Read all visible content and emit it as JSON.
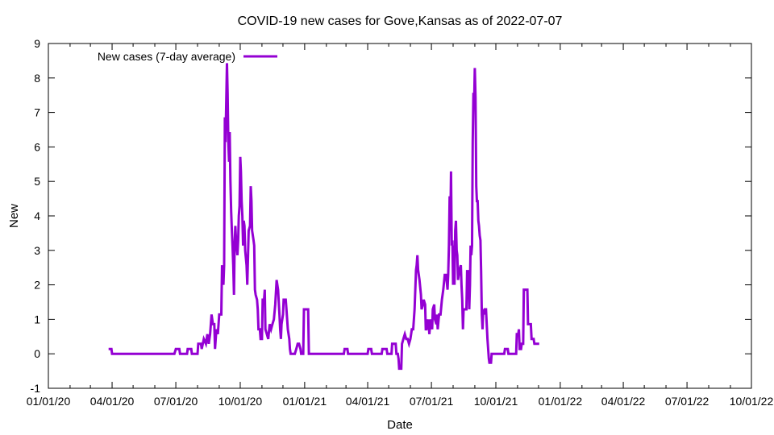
{
  "chart_data": {
    "type": "line",
    "title": "COVID-19 new cases for Gove,Kansas as of 2022-07-07",
    "xlabel": "Date",
    "ylabel": "New",
    "ylim": [
      -1,
      9
    ],
    "xlim": [
      "2020-01-01",
      "2022-10-01"
    ],
    "y_ticks": [
      -1,
      0,
      1,
      2,
      3,
      4,
      5,
      6,
      7,
      8,
      9
    ],
    "x_ticks": [
      {
        "date": "2020-01-01",
        "label": "01/01/20"
      },
      {
        "date": "2020-04-01",
        "label": "04/01/20"
      },
      {
        "date": "2020-07-01",
        "label": "07/01/20"
      },
      {
        "date": "2020-10-01",
        "label": "10/01/20"
      },
      {
        "date": "2021-01-01",
        "label": "01/01/21"
      },
      {
        "date": "2021-04-01",
        "label": "04/01/21"
      },
      {
        "date": "2021-07-01",
        "label": "07/01/21"
      },
      {
        "date": "2021-10-01",
        "label": "10/01/21"
      },
      {
        "date": "2022-01-01",
        "label": "01/01/22"
      },
      {
        "date": "2022-04-01",
        "label": "04/01/22"
      },
      {
        "date": "2022-07-01",
        "label": "07/01/22"
      },
      {
        "date": "2022-10-01",
        "label": "10/01/22"
      }
    ],
    "legend_position": "top-left",
    "grid": false,
    "series": [
      {
        "name": "New cases (7-day average)",
        "color": "#9400d3",
        "points": [
          [
            "2020-03-27",
            0.14
          ],
          [
            "2020-03-31",
            0.14
          ],
          [
            "2020-04-01",
            0
          ],
          [
            "2020-06-29",
            0
          ],
          [
            "2020-07-01",
            0.14
          ],
          [
            "2020-07-06",
            0.14
          ],
          [
            "2020-07-07",
            0
          ],
          [
            "2020-07-17",
            0
          ],
          [
            "2020-07-18",
            0.14
          ],
          [
            "2020-07-23",
            0.14
          ],
          [
            "2020-07-24",
            0
          ],
          [
            "2020-08-01",
            0
          ],
          [
            "2020-08-02",
            0.29
          ],
          [
            "2020-08-06",
            0.29
          ],
          [
            "2020-08-07",
            0.14
          ],
          [
            "2020-08-10",
            0.43
          ],
          [
            "2020-08-13",
            0.29
          ],
          [
            "2020-08-15",
            0.57
          ],
          [
            "2020-08-17",
            0.29
          ],
          [
            "2020-08-19",
            0.57
          ],
          [
            "2020-08-21",
            1.14
          ],
          [
            "2020-08-23",
            0.86
          ],
          [
            "2020-08-25",
            0.86
          ],
          [
            "2020-08-26",
            0.14
          ],
          [
            "2020-08-28",
            0.71
          ],
          [
            "2020-08-30",
            0.57
          ],
          [
            "2020-09-01",
            1.14
          ],
          [
            "2020-09-04",
            1.14
          ],
          [
            "2020-09-05",
            2.57
          ],
          [
            "2020-09-07",
            2.0
          ],
          [
            "2020-09-08",
            2.57
          ],
          [
            "2020-09-09",
            6.86
          ],
          [
            "2020-09-10",
            6.14
          ],
          [
            "2020-09-12",
            8.43
          ],
          [
            "2020-09-13",
            7.57
          ],
          [
            "2020-09-14",
            6.14
          ],
          [
            "2020-09-15",
            5.57
          ],
          [
            "2020-09-16",
            6.43
          ],
          [
            "2020-09-17",
            5.0
          ],
          [
            "2020-09-18",
            4.14
          ],
          [
            "2020-09-19",
            3.57
          ],
          [
            "2020-09-20",
            3.14
          ],
          [
            "2020-09-21",
            2.57
          ],
          [
            "2020-09-22",
            1.71
          ],
          [
            "2020-09-23",
            3.14
          ],
          [
            "2020-09-24",
            3.71
          ],
          [
            "2020-09-25",
            3.29
          ],
          [
            "2020-09-27",
            2.86
          ],
          [
            "2020-09-28",
            3.29
          ],
          [
            "2020-09-29",
            4.0
          ],
          [
            "2020-09-30",
            4.29
          ],
          [
            "2020-10-01",
            5.71
          ],
          [
            "2020-10-02",
            5.29
          ],
          [
            "2020-10-03",
            4.43
          ],
          [
            "2020-10-04",
            4.0
          ],
          [
            "2020-10-05",
            3.14
          ],
          [
            "2020-10-06",
            3.86
          ],
          [
            "2020-10-07",
            3.71
          ],
          [
            "2020-10-08",
            3.0
          ],
          [
            "2020-10-10",
            2.57
          ],
          [
            "2020-10-11",
            2.0
          ],
          [
            "2020-10-12",
            2.71
          ],
          [
            "2020-10-13",
            3.57
          ],
          [
            "2020-10-15",
            3.71
          ],
          [
            "2020-10-16",
            4.86
          ],
          [
            "2020-10-17",
            4.43
          ],
          [
            "2020-10-18",
            3.57
          ],
          [
            "2020-10-20",
            3.29
          ],
          [
            "2020-10-21",
            3.14
          ],
          [
            "2020-10-22",
            1.86
          ],
          [
            "2020-10-23",
            1.71
          ],
          [
            "2020-10-25",
            1.57
          ],
          [
            "2020-10-26",
            1.29
          ],
          [
            "2020-10-27",
            0.71
          ],
          [
            "2020-10-29",
            0.71
          ],
          [
            "2020-10-30",
            0.43
          ],
          [
            "2020-11-01",
            0.43
          ],
          [
            "2020-11-02",
            1.57
          ],
          [
            "2020-11-04",
            1.57
          ],
          [
            "2020-11-05",
            1.86
          ],
          [
            "2020-11-06",
            0.71
          ],
          [
            "2020-11-08",
            0.57
          ],
          [
            "2020-11-10",
            0.43
          ],
          [
            "2020-11-12",
            0.86
          ],
          [
            "2020-11-14",
            0.71
          ],
          [
            "2020-11-16",
            0.86
          ],
          [
            "2020-11-18",
            1.0
          ],
          [
            "2020-11-20",
            1.43
          ],
          [
            "2020-11-22",
            2.14
          ],
          [
            "2020-11-24",
            1.86
          ],
          [
            "2020-11-26",
            1.14
          ],
          [
            "2020-11-27",
            0.71
          ],
          [
            "2020-11-28",
            0.43
          ],
          [
            "2020-11-29",
            0.86
          ],
          [
            "2020-12-01",
            1.14
          ],
          [
            "2020-12-02",
            1.57
          ],
          [
            "2020-12-05",
            1.57
          ],
          [
            "2020-12-06",
            1.29
          ],
          [
            "2020-12-08",
            0.71
          ],
          [
            "2020-12-10",
            0.43
          ],
          [
            "2020-12-11",
            0.14
          ],
          [
            "2020-12-12",
            0
          ],
          [
            "2020-12-18",
            0
          ],
          [
            "2020-12-20",
            0.14
          ],
          [
            "2020-12-22",
            0.29
          ],
          [
            "2020-12-24",
            0.29
          ],
          [
            "2020-12-26",
            0.14
          ],
          [
            "2020-12-27",
            0
          ],
          [
            "2020-12-30",
            0
          ],
          [
            "2020-12-31",
            1.29
          ],
          [
            "2021-01-06",
            1.29
          ],
          [
            "2021-01-07",
            0
          ],
          [
            "2021-02-26",
            0
          ],
          [
            "2021-02-27",
            0.14
          ],
          [
            "2021-03-03",
            0.14
          ],
          [
            "2021-03-04",
            0
          ],
          [
            "2021-04-01",
            0
          ],
          [
            "2021-04-02",
            0.14
          ],
          [
            "2021-04-06",
            0.14
          ],
          [
            "2021-04-07",
            0
          ],
          [
            "2021-04-21",
            0
          ],
          [
            "2021-04-22",
            0.14
          ],
          [
            "2021-04-28",
            0.14
          ],
          [
            "2021-04-29",
            0
          ],
          [
            "2021-05-05",
            0
          ],
          [
            "2021-05-06",
            0.29
          ],
          [
            "2021-05-11",
            0.29
          ],
          [
            "2021-05-12",
            0
          ],
          [
            "2021-05-14",
            0
          ],
          [
            "2021-05-15",
            -0.14
          ],
          [
            "2021-05-16",
            -0.43
          ],
          [
            "2021-05-19",
            -0.43
          ],
          [
            "2021-05-20",
            0.29
          ],
          [
            "2021-05-22",
            0.43
          ],
          [
            "2021-05-24",
            0.57
          ],
          [
            "2021-05-26",
            0.43
          ],
          [
            "2021-05-28",
            0.43
          ],
          [
            "2021-05-30",
            0.29
          ],
          [
            "2021-06-01",
            0.43
          ],
          [
            "2021-06-03",
            0.71
          ],
          [
            "2021-06-05",
            0.71
          ],
          [
            "2021-06-07",
            1.29
          ],
          [
            "2021-06-09",
            2.43
          ],
          [
            "2021-06-10",
            2.57
          ],
          [
            "2021-06-11",
            2.86
          ],
          [
            "2021-06-12",
            2.43
          ],
          [
            "2021-06-14",
            2.14
          ],
          [
            "2021-06-16",
            1.71
          ],
          [
            "2021-06-17",
            1.29
          ],
          [
            "2021-06-19",
            1.43
          ],
          [
            "2021-06-20",
            1.57
          ],
          [
            "2021-06-22",
            1.43
          ],
          [
            "2021-06-23",
            0.71
          ],
          [
            "2021-06-24",
            0.71
          ],
          [
            "2021-06-25",
            1.0
          ],
          [
            "2021-06-26",
            0.71
          ],
          [
            "2021-06-27",
            1.0
          ],
          [
            "2021-06-28",
            0.57
          ],
          [
            "2021-06-30",
            1.0
          ],
          [
            "2021-07-02",
            0.71
          ],
          [
            "2021-07-03",
            1.29
          ],
          [
            "2021-07-05",
            1.43
          ],
          [
            "2021-07-06",
            1.0
          ],
          [
            "2021-07-08",
            0.86
          ],
          [
            "2021-07-09",
            1.14
          ],
          [
            "2021-07-10",
            0.71
          ],
          [
            "2021-07-12",
            1.14
          ],
          [
            "2021-07-14",
            1.14
          ],
          [
            "2021-07-16",
            1.57
          ],
          [
            "2021-07-18",
            1.86
          ],
          [
            "2021-07-20",
            2.29
          ],
          [
            "2021-07-22",
            2.29
          ],
          [
            "2021-07-24",
            1.86
          ],
          [
            "2021-07-25",
            2.29
          ],
          [
            "2021-07-26",
            3.14
          ],
          [
            "2021-07-27",
            4.57
          ],
          [
            "2021-07-28",
            3.57
          ],
          [
            "2021-07-29",
            5.29
          ],
          [
            "2021-07-30",
            3.14
          ],
          [
            "2021-07-31",
            3.29
          ],
          [
            "2021-08-01",
            2.0
          ],
          [
            "2021-08-02",
            3.14
          ],
          [
            "2021-08-03",
            2.0
          ],
          [
            "2021-08-04",
            3.57
          ],
          [
            "2021-08-05",
            3.86
          ],
          [
            "2021-08-06",
            3.0
          ],
          [
            "2021-08-07",
            2.86
          ],
          [
            "2021-08-08",
            2.14
          ],
          [
            "2021-08-10",
            2.43
          ],
          [
            "2021-08-12",
            2.57
          ],
          [
            "2021-08-13",
            2.0
          ],
          [
            "2021-08-14",
            1.57
          ],
          [
            "2021-08-15",
            0.71
          ],
          [
            "2021-08-16",
            1.29
          ],
          [
            "2021-08-20",
            1.29
          ],
          [
            "2021-08-21",
            2.43
          ],
          [
            "2021-08-22",
            1.86
          ],
          [
            "2021-08-23",
            2.43
          ],
          [
            "2021-08-24",
            1.29
          ],
          [
            "2021-08-25",
            2.0
          ],
          [
            "2021-08-26",
            3.14
          ],
          [
            "2021-08-27",
            2.86
          ],
          [
            "2021-08-28",
            3.14
          ],
          [
            "2021-08-29",
            6.14
          ],
          [
            "2021-08-30",
            7.57
          ],
          [
            "2021-08-31",
            7.29
          ],
          [
            "2021-09-01",
            8.29
          ],
          [
            "2021-09-02",
            7.43
          ],
          [
            "2021-09-03",
            4.86
          ],
          [
            "2021-09-04",
            4.43
          ],
          [
            "2021-09-05",
            4.43
          ],
          [
            "2021-09-06",
            3.86
          ],
          [
            "2021-09-07",
            3.71
          ],
          [
            "2021-09-08",
            3.43
          ],
          [
            "2021-09-09",
            3.29
          ],
          [
            "2021-09-10",
            2.43
          ],
          [
            "2021-09-11",
            1.14
          ],
          [
            "2021-09-12",
            0.71
          ],
          [
            "2021-09-13",
            1.29
          ],
          [
            "2021-09-14",
            1.14
          ],
          [
            "2021-09-15",
            1.29
          ],
          [
            "2021-09-17",
            1.29
          ],
          [
            "2021-09-18",
            0.86
          ],
          [
            "2021-09-19",
            0.43
          ],
          [
            "2021-09-21",
            -0.14
          ],
          [
            "2021-09-22",
            -0.29
          ],
          [
            "2021-09-23",
            -0.14
          ],
          [
            "2021-09-24",
            -0.29
          ],
          [
            "2021-09-25",
            0
          ],
          [
            "2021-10-13",
            0
          ],
          [
            "2021-10-14",
            0.14
          ],
          [
            "2021-10-18",
            0.14
          ],
          [
            "2021-10-19",
            0
          ],
          [
            "2021-10-30",
            0
          ],
          [
            "2021-10-31",
            0.57
          ],
          [
            "2021-11-02",
            0.57
          ],
          [
            "2021-11-03",
            0.71
          ],
          [
            "2021-11-04",
            0.14
          ],
          [
            "2021-11-06",
            0.14
          ],
          [
            "2021-11-07",
            0.29
          ],
          [
            "2021-11-09",
            0.29
          ],
          [
            "2021-11-10",
            1.86
          ],
          [
            "2021-11-15",
            1.86
          ],
          [
            "2021-11-16",
            0.86
          ],
          [
            "2021-11-20",
            0.86
          ],
          [
            "2021-11-21",
            0.43
          ],
          [
            "2021-11-24",
            0.43
          ],
          [
            "2021-11-25",
            0.29
          ],
          [
            "2021-12-02",
            0.29
          ]
        ]
      }
    ]
  }
}
